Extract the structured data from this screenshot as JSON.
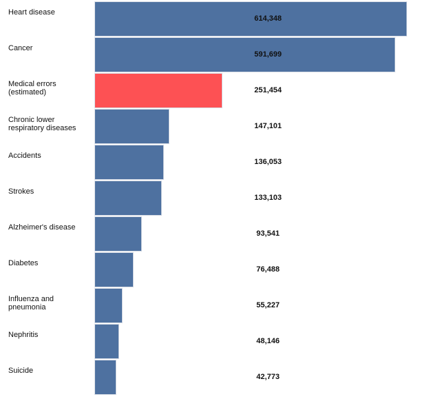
{
  "chart_data": {
    "type": "bar",
    "orientation": "horizontal",
    "title": "",
    "xlabel": "",
    "ylabel": "",
    "xlim": [
      0,
      614348
    ],
    "grid": false,
    "legend": "none",
    "categories": [
      "Heart disease",
      "Cancer",
      "Medical errors\n(estimated)",
      "Chronic lower\nrespiratory diseases",
      "Accidents",
      "Strokes",
      "Alzheimer's disease",
      "Diabetes",
      "Influenza and\npneumonia",
      "Nephritis",
      "Suicide"
    ],
    "values": [
      614348,
      591699,
      251454,
      147101,
      136053,
      133103,
      93541,
      76488,
      55227,
      48146,
      42773
    ],
    "value_labels": [
      "614,348",
      "591,699",
      "251,454",
      "147,101",
      "136,053",
      "133,103",
      "93,541",
      "76,488",
      "55,227",
      "48,146",
      "42,773"
    ],
    "colors": {
      "default": "#4e71a0",
      "highlight": "#fd5154"
    },
    "highlight_index": 2
  }
}
